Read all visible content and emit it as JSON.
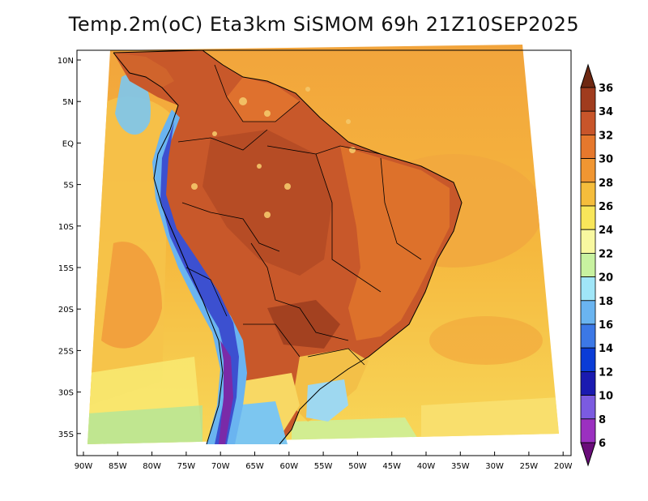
{
  "title": "Temp.2m(oC) Eta3km SiSMOM 69h 21Z10SEP2025",
  "map": {
    "lat_ticks": [
      "10N",
      "5N",
      "EQ",
      "5S",
      "10S",
      "15S",
      "20S",
      "25S",
      "30S",
      "35S"
    ],
    "lon_ticks": [
      "90W",
      "85W",
      "80W",
      "75W",
      "70W",
      "65W",
      "60W",
      "55W",
      "50W",
      "45W",
      "40W",
      "35W",
      "30W",
      "25W",
      "20W"
    ]
  },
  "colorbar": {
    "levels": [
      "6",
      "8",
      "10",
      "12",
      "14",
      "16",
      "18",
      "20",
      "22",
      "24",
      "26",
      "28",
      "30",
      "32",
      "34",
      "36"
    ],
    "colors": [
      "#6a0d7a",
      "#9b30c0",
      "#7b5be0",
      "#1a1ab0",
      "#0a3cd6",
      "#3c78e6",
      "#6ab4f0",
      "#a0e6f8",
      "#c8f2a0",
      "#f8f8a0",
      "#f8e65a",
      "#f5bd3c",
      "#f09632",
      "#e6782d",
      "#c8552a",
      "#a03c1e",
      "#6e2812"
    ]
  },
  "colors": {
    "ocean_warm": "#f5c242",
    "ocean_mild": "#f8e05a",
    "land_hot": "#c8582a",
    "andes_cold": "#5a3cc8"
  }
}
